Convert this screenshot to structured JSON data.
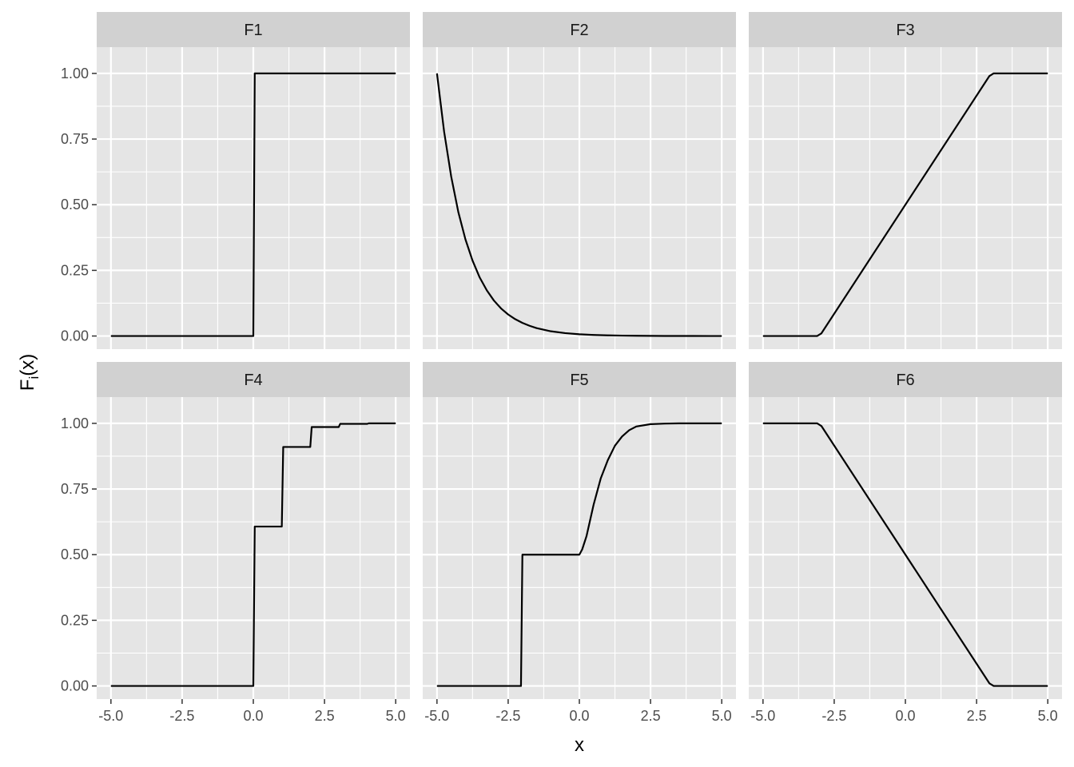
{
  "chart_data": {
    "type": "line",
    "layout": "facet-grid",
    "facet_rows": 2,
    "facet_cols": 3,
    "xlabel": "x",
    "ylabel_main": "F",
    "ylabel_sub": "i",
    "ylabel_tail": "(x)",
    "xlim": [
      -5.5,
      5.5
    ],
    "ylim": [
      -0.05,
      1.1
    ],
    "x_ticks": [
      -5,
      -2.5,
      0,
      2.5,
      5
    ],
    "x_tick_labels": [
      "-5.0",
      "-2.5",
      "0.0",
      "2.5",
      "5.0"
    ],
    "y_ticks": [
      0,
      0.25,
      0.5,
      0.75,
      1
    ],
    "y_tick_labels": [
      "0.00",
      "0.25",
      "0.50",
      "0.75",
      "1.00"
    ],
    "grid": true,
    "colors": {
      "panel_bg": "#e5e5e5",
      "strip_bg": "#d1d1d1",
      "grid": "#ffffff",
      "line": "#000000",
      "tick": "#333333"
    },
    "facets": [
      {
        "label": "F1",
        "x": [
          -5,
          0,
          0.05,
          5
        ],
        "y": [
          0,
          0,
          1,
          1
        ]
      },
      {
        "label": "F2",
        "x": [
          -5,
          -4.75,
          -4.5,
          -4.25,
          -4,
          -3.75,
          -3.5,
          -3.25,
          -3,
          -2.75,
          -2.5,
          -2.25,
          -2,
          -1.75,
          -1.5,
          -1.25,
          -1,
          -0.5,
          0,
          0.5,
          1,
          1.5,
          2,
          3,
          4,
          5
        ],
        "y": [
          1,
          0.779,
          0.607,
          0.472,
          0.368,
          0.287,
          0.223,
          0.174,
          0.135,
          0.105,
          0.082,
          0.064,
          0.05,
          0.039,
          0.03,
          0.024,
          0.018,
          0.011,
          0.0067,
          0.0041,
          0.0025,
          0.0015,
          0.0009,
          0.0003,
          0.0001,
          0
        ]
      },
      {
        "label": "F3",
        "x": [
          -5,
          -3.1,
          -2.95,
          2.95,
          3.1,
          5
        ],
        "y": [
          0,
          0,
          0.01,
          0.99,
          1,
          1
        ]
      },
      {
        "label": "F4",
        "x": [
          -5,
          0,
          0.05,
          1,
          1.05,
          2,
          2.05,
          3,
          3.05,
          4,
          4.05,
          5
        ],
        "y": [
          0,
          0,
          0.607,
          0.607,
          0.91,
          0.91,
          0.986,
          0.986,
          0.998,
          0.998,
          1,
          1
        ]
      },
      {
        "label": "F5",
        "x": [
          -5,
          -2.05,
          -2,
          0,
          0.1,
          0.25,
          0.5,
          0.75,
          1,
          1.25,
          1.5,
          1.75,
          2,
          2.5,
          3,
          3.5,
          5
        ],
        "y": [
          0,
          0,
          0.5,
          0.5,
          0.52,
          0.57,
          0.69,
          0.79,
          0.86,
          0.915,
          0.95,
          0.974,
          0.988,
          0.997,
          0.999,
          1,
          1
        ]
      },
      {
        "label": "F6",
        "x": [
          -5,
          -3.1,
          -2.95,
          2.95,
          3.1,
          5
        ],
        "y": [
          1,
          1,
          0.99,
          0.01,
          0,
          0
        ]
      }
    ]
  }
}
